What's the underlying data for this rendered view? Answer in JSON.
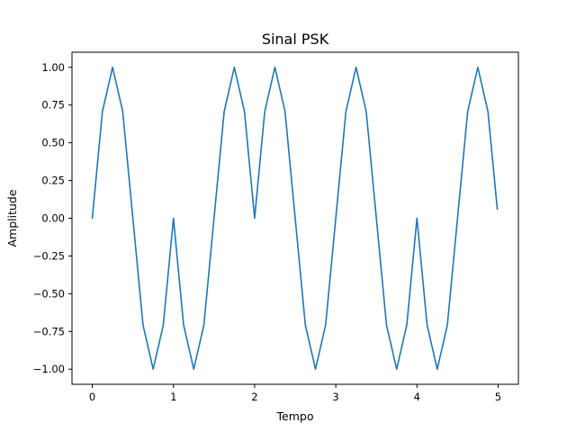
{
  "chart_data": {
    "type": "line",
    "title": "Sinal PSK",
    "xlabel": "Tempo",
    "ylabel": "Amplitude",
    "xlim": [
      -0.25,
      5.25
    ],
    "ylim": [
      -1.1,
      1.1
    ],
    "x_ticks": [
      0,
      1,
      2,
      3,
      4,
      5
    ],
    "x_tick_labels": [
      "0",
      "1",
      "2",
      "3",
      "4",
      "5"
    ],
    "y_ticks": [
      -1.0,
      -0.75,
      -0.5,
      -0.25,
      0.0,
      0.25,
      0.5,
      0.75,
      1.0
    ],
    "y_tick_labels": [
      "−1.00",
      "−0.75",
      "−0.50",
      "−0.25",
      "0.00",
      "0.25",
      "0.50",
      "0.75",
      "1.00"
    ],
    "grid": false,
    "series": [
      {
        "color": "#1f77b4",
        "x": [
          0,
          0.125,
          0.25,
          0.375,
          0.5,
          0.625,
          0.75,
          0.875,
          1.0,
          1.125,
          1.25,
          1.375,
          1.5,
          1.625,
          1.75,
          1.875,
          2.0,
          2.125,
          2.25,
          2.375,
          2.5,
          2.625,
          2.75,
          2.875,
          3.0,
          3.125,
          3.25,
          3.375,
          3.5,
          3.625,
          3.75,
          3.875,
          4.0,
          4.125,
          4.25,
          4.375,
          4.5,
          4.625,
          4.75,
          4.875,
          4.99
        ],
        "y": [
          0.0,
          0.707,
          1.0,
          0.707,
          0.0,
          -0.707,
          -1.0,
          -0.707,
          0.0,
          -0.707,
          -1.0,
          -0.707,
          0.0,
          0.707,
          1.0,
          0.707,
          0.0,
          0.707,
          1.0,
          0.707,
          0.0,
          -0.707,
          -1.0,
          -0.707,
          0.0,
          0.707,
          1.0,
          0.707,
          0.0,
          -0.707,
          -1.0,
          -0.707,
          0.0,
          -0.707,
          -1.0,
          -0.707,
          0.0,
          0.707,
          1.0,
          0.707,
          0.06
        ]
      }
    ]
  }
}
